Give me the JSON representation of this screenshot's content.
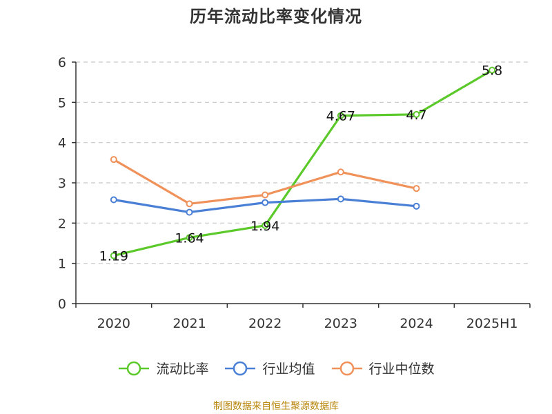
{
  "chart_data": {
    "type": "line",
    "title": "历年流动比率变化情况",
    "categories": [
      "2020",
      "2021",
      "2022",
      "2023",
      "2024",
      "2025H1"
    ],
    "ylim": [
      0,
      6
    ],
    "yticks": [
      "0",
      "1",
      "2",
      "3",
      "4",
      "5",
      "6"
    ],
    "grid": "horizontal-dashed",
    "legend_position": "bottom",
    "series": [
      {
        "name": "流动比率",
        "color": "#5bc92a",
        "values": [
          1.19,
          1.64,
          1.94,
          4.67,
          4.7,
          5.8
        ],
        "labels": [
          "1.19",
          "1.64",
          "1.94",
          "4.67",
          "4.7",
          "5.8"
        ]
      },
      {
        "name": "行业均值",
        "color": "#4a7fd6",
        "values": [
          2.58,
          2.27,
          2.51,
          2.6,
          2.42,
          null
        ]
      },
      {
        "name": "行业中位数",
        "color": "#f0915a",
        "values": [
          3.58,
          2.48,
          2.7,
          3.27,
          2.86,
          null
        ]
      }
    ]
  },
  "source": "制图数据来自恒生聚源数据库"
}
